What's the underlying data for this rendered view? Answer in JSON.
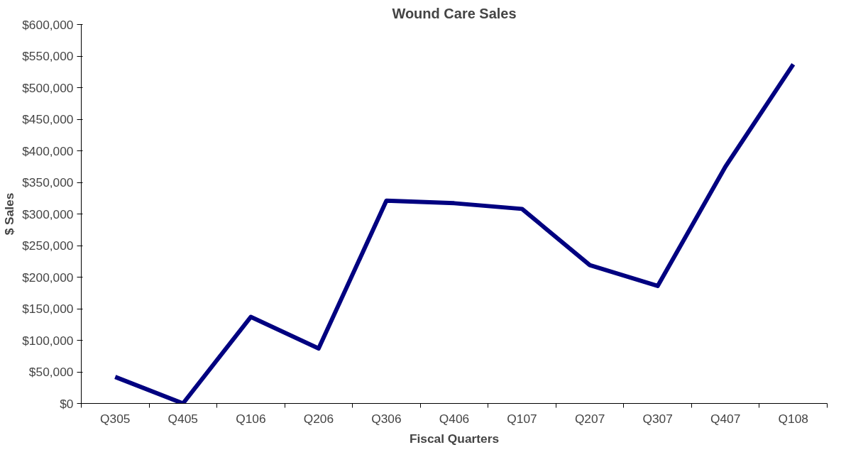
{
  "chart_data": {
    "type": "line",
    "title": "Wound Care Sales",
    "xlabel": "Fiscal Quarters",
    "ylabel": "$ Sales",
    "categories": [
      "Q305",
      "Q405",
      "Q106",
      "Q206",
      "Q306",
      "Q406",
      "Q107",
      "Q207",
      "Q307",
      "Q407",
      "Q108"
    ],
    "series": [
      {
        "color": "#000080",
        "values": [
          42000,
          0,
          137000,
          87000,
          321000,
          317000,
          308000,
          219000,
          186000,
          375000,
          537000
        ]
      }
    ],
    "ylim": [
      0,
      600000
    ],
    "yticks": [
      {
        "value": 0,
        "label": "$0"
      },
      {
        "value": 50000,
        "label": "$50,000"
      },
      {
        "value": 100000,
        "label": "$100,000"
      },
      {
        "value": 150000,
        "label": "$150,000"
      },
      {
        "value": 200000,
        "label": "$200,000"
      },
      {
        "value": 250000,
        "label": "$250,000"
      },
      {
        "value": 300000,
        "label": "$300,000"
      },
      {
        "value": 350000,
        "label": "$350,000"
      },
      {
        "value": 400000,
        "label": "$400,000"
      },
      {
        "value": 450000,
        "label": "$450,000"
      },
      {
        "value": 500000,
        "label": "$500,000"
      },
      {
        "value": 550000,
        "label": "$550,000"
      },
      {
        "value": 600000,
        "label": "$600,000"
      }
    ],
    "grid": false,
    "marker": "none",
    "line_style": "solid"
  }
}
